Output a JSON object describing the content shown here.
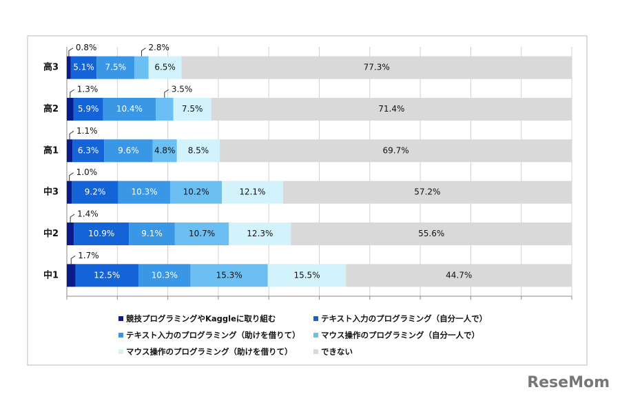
{
  "chart_data": {
    "type": "stacked-bar-horizontal",
    "categories": [
      "高3",
      "高2",
      "高1",
      "中3",
      "中2",
      "中1"
    ],
    "series": [
      {
        "name": "競技プログラミングやKaggleに取り組む",
        "color": "#0a1c8c",
        "values": [
          0.8,
          1.3,
          1.1,
          1.0,
          1.4,
          1.7
        ],
        "value_labels": [
          "0.8%",
          "1.3%",
          "1.1%",
          "1.0%",
          "1.4%",
          "1.7%"
        ]
      },
      {
        "name": "テキスト入力のプログラミング（自分一人で）",
        "color": "#1464d8",
        "values": [
          5.1,
          5.9,
          6.3,
          9.2,
          10.9,
          12.5
        ],
        "value_labels": [
          "5.1%",
          "5.9%",
          "6.3%",
          "9.2%",
          "10.9%",
          "12.5%"
        ]
      },
      {
        "name": "テキスト入力のプログラミング（助けを借りて）",
        "color": "#3a97e6",
        "values": [
          7.5,
          10.4,
          9.6,
          10.3,
          9.1,
          10.3
        ],
        "value_labels": [
          "7.5%",
          "10.4%",
          "9.6%",
          "10.3%",
          "9.1%",
          "10.3%"
        ]
      },
      {
        "name": "マウス操作のプログラミング（自分一人で）",
        "color": "#6cbff3",
        "values": [
          2.8,
          3.5,
          4.8,
          10.2,
          10.7,
          15.3
        ],
        "value_labels": [
          "2.8%",
          "3.5%",
          "4.8%",
          "10.2%",
          "10.7%",
          "15.3%"
        ]
      },
      {
        "name": "マウス操作のプログラミング（助けを借りて）",
        "color": "#d3f3fc",
        "values": [
          6.5,
          7.5,
          8.5,
          12.1,
          12.3,
          15.5
        ],
        "value_labels": [
          "6.5%",
          "7.5%",
          "8.5%",
          "12.1%",
          "12.3%",
          "15.5%"
        ]
      },
      {
        "name": "できない",
        "color": "#d9d9d9",
        "values": [
          77.3,
          71.4,
          69.7,
          57.2,
          55.6,
          44.7
        ],
        "value_labels": [
          "77.3%",
          "71.4%",
          "69.7%",
          "57.2%",
          "55.6%",
          "44.7%"
        ]
      }
    ],
    "xlim": [
      0,
      100
    ],
    "xticks": [
      0,
      10,
      20,
      30,
      40,
      50,
      60,
      70,
      80,
      90,
      100
    ],
    "grid": true
  },
  "logo": "ReseMom"
}
